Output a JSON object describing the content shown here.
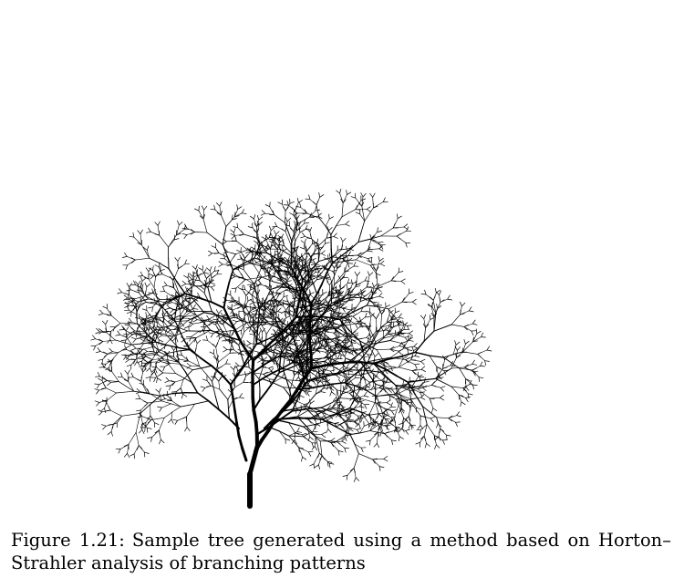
{
  "figure": {
    "label": "Figure 1.21:",
    "caption_text": "Sample tree generated using a method based on Horton–Strahler analysis of branching patterns"
  },
  "tree_color": "#000000"
}
